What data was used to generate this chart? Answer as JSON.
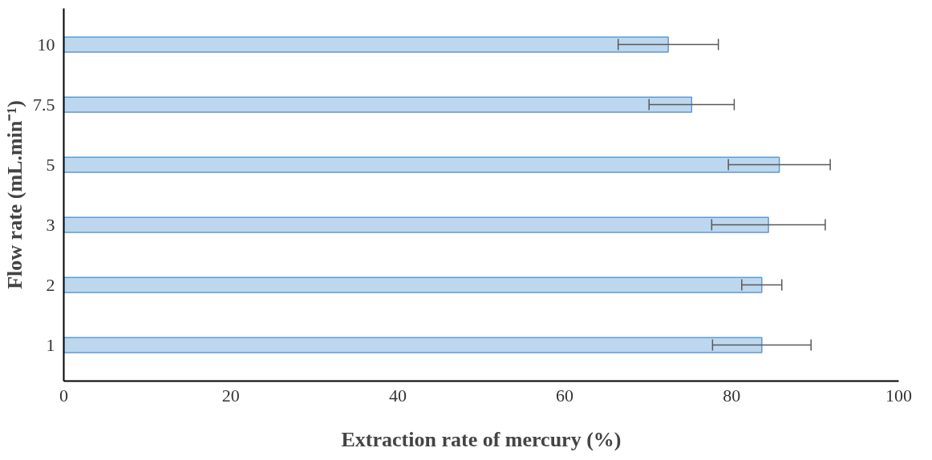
{
  "chart_data": {
    "type": "bar",
    "orientation": "horizontal",
    "xlabel": "Extraction rate of mercury (%)",
    "ylabel": "Flow rate (mL.min⁻¹)",
    "categories": [
      "10",
      "7.5",
      "5",
      "3",
      "2",
      "1"
    ],
    "values": [
      72.4,
      75.2,
      85.7,
      84.4,
      83.6,
      83.6
    ],
    "errors": [
      6.0,
      5.1,
      6.1,
      6.8,
      2.4,
      5.9
    ],
    "color": "#bdd7ee",
    "xlim": [
      0,
      100
    ],
    "xticks": [
      0,
      20,
      40,
      60,
      80,
      100
    ],
    "grid": false
  }
}
